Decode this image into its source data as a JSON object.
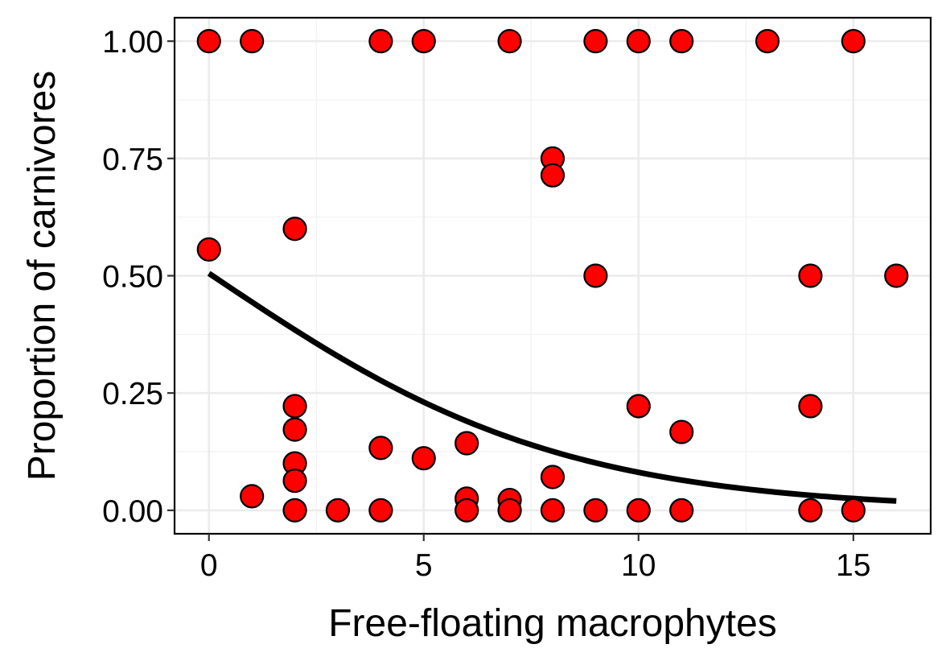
{
  "chart_data": {
    "type": "scatter",
    "xlabel": "Free-floating macrophytes",
    "ylabel": "Proportion of carnivores",
    "xlim": [
      -0.8,
      16.8
    ],
    "ylim": [
      -0.05,
      1.05
    ],
    "x_ticks": [
      0,
      5,
      10,
      15
    ],
    "x_tick_labels": [
      "0",
      "5",
      "10",
      "15"
    ],
    "y_ticks": [
      0,
      0.25,
      0.5,
      0.75,
      1.0
    ],
    "y_tick_labels": [
      "0.00",
      "0.25",
      "0.50",
      "0.75",
      "1.00"
    ],
    "grid": true,
    "legend": "none",
    "point_fill": "#ff0000",
    "point_stroke": "#000000",
    "line_color": "#000000",
    "points": [
      {
        "x": 0,
        "y": 1.0
      },
      {
        "x": 1,
        "y": 1.0
      },
      {
        "x": 4,
        "y": 1.0
      },
      {
        "x": 5,
        "y": 1.0
      },
      {
        "x": 7,
        "y": 1.0
      },
      {
        "x": 9,
        "y": 1.0
      },
      {
        "x": 10,
        "y": 1.0
      },
      {
        "x": 11,
        "y": 1.0
      },
      {
        "x": 13,
        "y": 1.0
      },
      {
        "x": 15,
        "y": 1.0
      },
      {
        "x": 8,
        "y": 0.75
      },
      {
        "x": 8,
        "y": 0.714
      },
      {
        "x": 2,
        "y": 0.6
      },
      {
        "x": 0,
        "y": 0.556
      },
      {
        "x": 9,
        "y": 0.5
      },
      {
        "x": 14,
        "y": 0.5
      },
      {
        "x": 16,
        "y": 0.5
      },
      {
        "x": 2,
        "y": 0.222
      },
      {
        "x": 10,
        "y": 0.222
      },
      {
        "x": 14,
        "y": 0.222
      },
      {
        "x": 2,
        "y": 0.172
      },
      {
        "x": 11,
        "y": 0.167
      },
      {
        "x": 6,
        "y": 0.143
      },
      {
        "x": 4,
        "y": 0.133
      },
      {
        "x": 5,
        "y": 0.111
      },
      {
        "x": 2,
        "y": 0.1
      },
      {
        "x": 8,
        "y": 0.071
      },
      {
        "x": 2,
        "y": 0.063
      },
      {
        "x": 1,
        "y": 0.03
      },
      {
        "x": 6,
        "y": 0.025
      },
      {
        "x": 7,
        "y": 0.022
      },
      {
        "x": 2,
        "y": 0.0
      },
      {
        "x": 3,
        "y": 0.0
      },
      {
        "x": 4,
        "y": 0.0
      },
      {
        "x": 6,
        "y": 0.0
      },
      {
        "x": 7,
        "y": 0.0
      },
      {
        "x": 8,
        "y": 0.0
      },
      {
        "x": 9,
        "y": 0.0
      },
      {
        "x": 10,
        "y": 0.0
      },
      {
        "x": 11,
        "y": 0.0
      },
      {
        "x": 14,
        "y": 0.0
      },
      {
        "x": 15,
        "y": 0.0
      }
    ],
    "fit_line": {
      "type": "logistic",
      "intercept": 0.02,
      "slope": -0.245,
      "x_range": [
        0,
        16
      ]
    }
  }
}
